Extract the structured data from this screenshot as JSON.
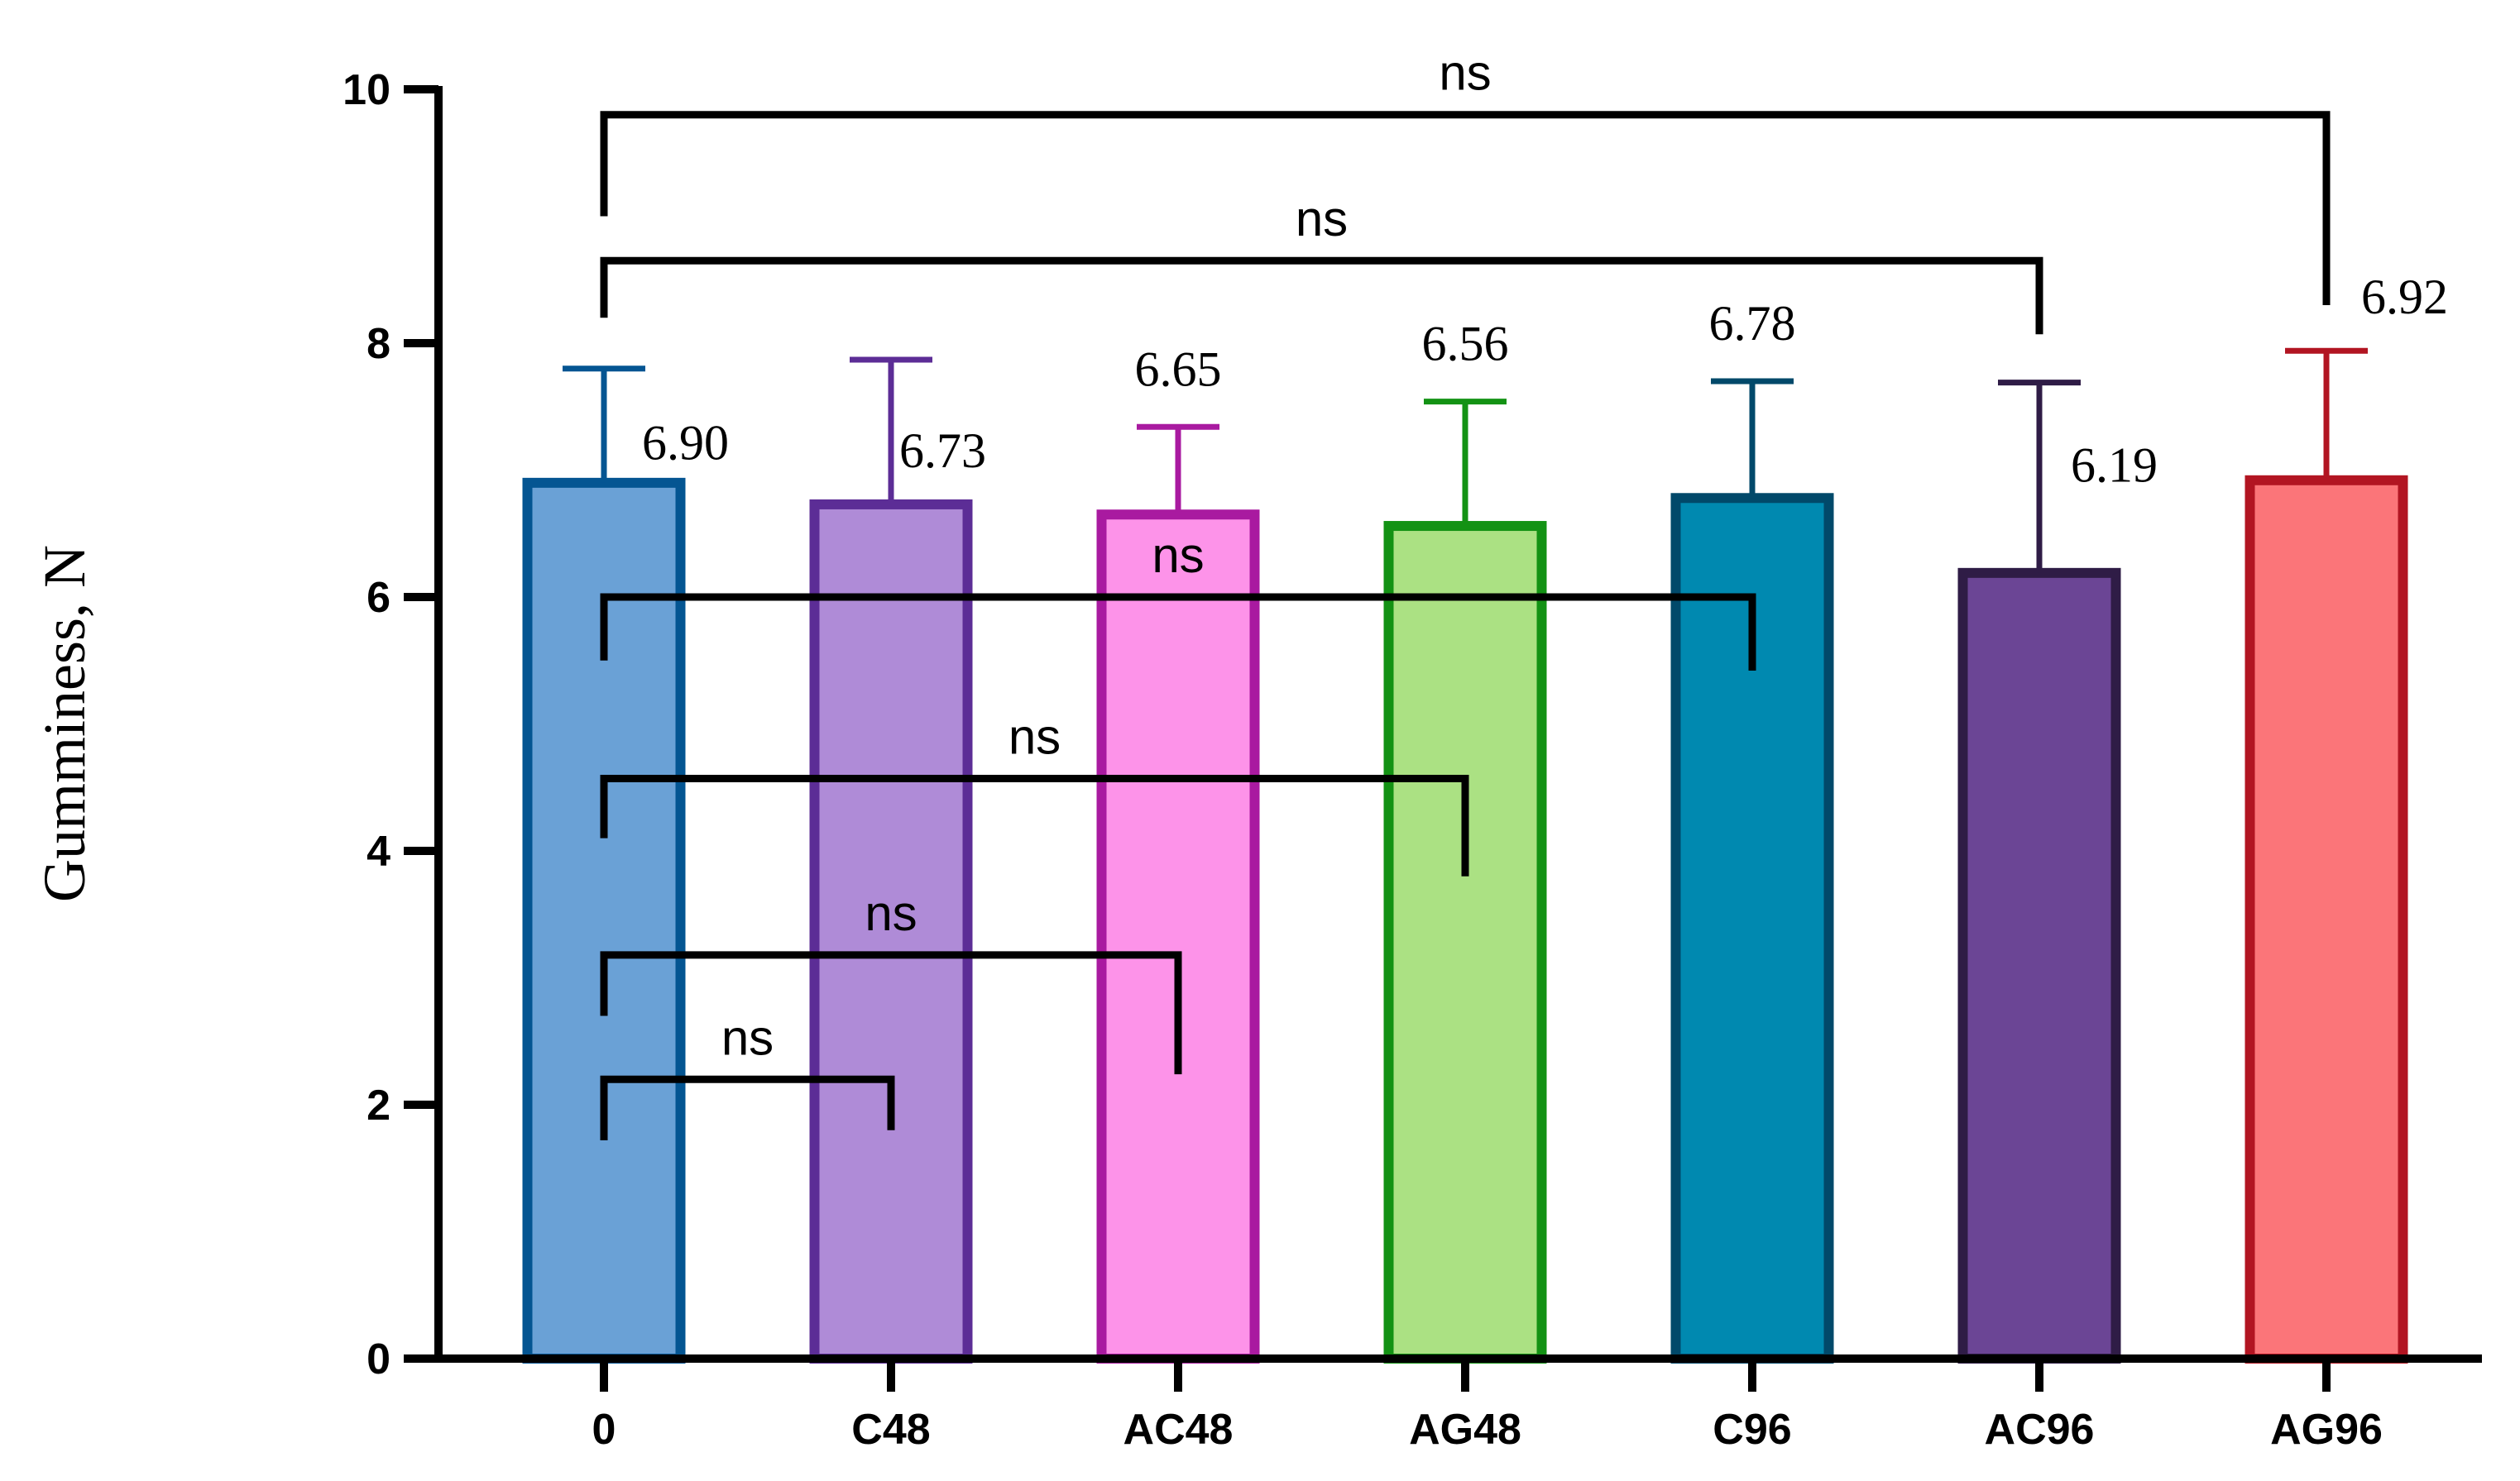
{
  "chart_data": {
    "type": "bar",
    "ylabel": "Gumminess, N",
    "xlabel": "",
    "title": "",
    "ylim": [
      0,
      10
    ],
    "yticks": [
      0,
      2,
      4,
      6,
      8,
      10
    ],
    "categories": [
      "0",
      "C48",
      "AC48",
      "AG48",
      "C96",
      "AC96",
      "AG96"
    ],
    "values": [
      6.9,
      6.73,
      6.65,
      6.56,
      6.78,
      6.19,
      6.92
    ],
    "value_labels": [
      "6.90",
      "6.73",
      "6.65",
      "6.56",
      "6.78",
      "6.19",
      "6.92"
    ],
    "error_upper": [
      7.8,
      7.87,
      7.34,
      7.54,
      7.7,
      7.69,
      7.94
    ],
    "fill_colors": [
      "#6aa1d6",
      "#af8bd7",
      "#fd93e9",
      "#abe183",
      "#0089b0",
      "#6b4595",
      "#fb7579"
    ],
    "edge_colors": [
      "#045592",
      "#5c2d96",
      "#a91aa0",
      "#139214",
      "#01496a",
      "#2f1c46",
      "#b21522"
    ],
    "comparisons": [
      {
        "from": "0",
        "to": "AG96",
        "label": "ns",
        "bracket_y": 9.8,
        "left_tick_end": 9.0,
        "right_tick_end": 8.3
      },
      {
        "from": "0",
        "to": "AC96",
        "label": "ns",
        "bracket_y": 8.65,
        "left_tick_end": 8.2,
        "right_tick_end": 8.07
      },
      {
        "from": "0",
        "to": "C96",
        "label": "ns",
        "bracket_y": 6.0,
        "left_tick_end": 5.5,
        "right_tick_end": 5.42
      },
      {
        "from": "0",
        "to": "AG48",
        "label": "ns",
        "bracket_y": 4.57,
        "left_tick_end": 4.1,
        "right_tick_end": 3.8
      },
      {
        "from": "0",
        "to": "AC48",
        "label": "ns",
        "bracket_y": 3.18,
        "left_tick_end": 2.7,
        "right_tick_end": 2.24
      },
      {
        "from": "0",
        "to": "C48",
        "label": "ns",
        "bracket_y": 2.2,
        "left_tick_end": 1.72,
        "right_tick_end": 1.8
      }
    ]
  }
}
